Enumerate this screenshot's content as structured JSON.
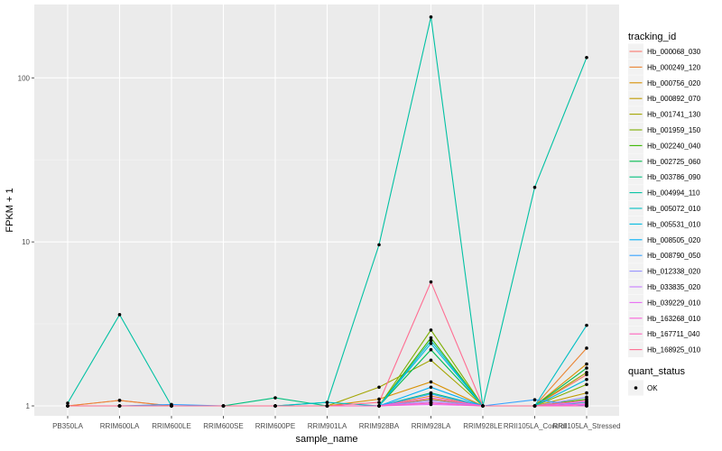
{
  "chart_data": {
    "type": "line",
    "xlabel": "sample_name",
    "ylabel": "FPKM + 1",
    "y_scale": "log10",
    "ylim": [
      0.87,
      280
    ],
    "y_ticks": [
      {
        "value": 1,
        "label": "1"
      },
      {
        "value": 10,
        "label": "10"
      },
      {
        "value": 100,
        "label": "100"
      }
    ],
    "categories": [
      "PB350LA",
      "RRIM600LA",
      "RRIM600LE",
      "RRIM600SE",
      "RRIM600PE",
      "RRIM901LA",
      "RRIM928BA",
      "RRIM928LA",
      "RRIM928LE",
      "RRII105LA_Control",
      "RRII105LA_Stressed"
    ],
    "legend_title": "tracking_id",
    "series": [
      {
        "name": "Hb_000068_030",
        "color": "#F8766D",
        "values": [
          1.0,
          1.08,
          1.0,
          1.0,
          1.0,
          1.0,
          1.0,
          1.05,
          1.0,
          1.0,
          1.55
        ]
      },
      {
        "name": "Hb_000249_120",
        "color": "#EA8331",
        "values": [
          1.0,
          1.08,
          1.0,
          1.0,
          1.0,
          1.0,
          1.0,
          1.15,
          1.0,
          1.0,
          2.25
        ]
      },
      {
        "name": "Hb_000756_020",
        "color": "#D89000",
        "values": [
          1.0,
          1.0,
          1.0,
          1.0,
          1.0,
          1.0,
          1.1,
          1.4,
          1.0,
          1.0,
          1.8
        ]
      },
      {
        "name": "Hb_000892_070",
        "color": "#C09B00",
        "values": [
          1.0,
          1.0,
          1.0,
          1.0,
          1.0,
          1.0,
          1.0,
          1.1,
          1.0,
          1.0,
          1.2
        ]
      },
      {
        "name": "Hb_001741_130",
        "color": "#A3A500",
        "values": [
          1.0,
          1.0,
          1.0,
          1.0,
          1.0,
          1.0,
          1.3,
          1.9,
          1.0,
          1.0,
          1.6
        ]
      },
      {
        "name": "Hb_001959_150",
        "color": "#7CAE00",
        "values": [
          1.0,
          1.0,
          1.0,
          1.0,
          1.0,
          1.0,
          1.0,
          2.9,
          1.0,
          1.0,
          1.35
        ]
      },
      {
        "name": "Hb_002240_040",
        "color": "#39B600",
        "values": [
          1.0,
          1.0,
          1.0,
          1.0,
          1.0,
          1.0,
          1.0,
          2.6,
          1.0,
          1.0,
          1.1
        ]
      },
      {
        "name": "Hb_002725_060",
        "color": "#00BB4E",
        "values": [
          1.0,
          1.0,
          1.0,
          1.0,
          1.0,
          1.0,
          1.0,
          2.2,
          1.0,
          1.0,
          1.7
        ]
      },
      {
        "name": "Hb_003786_090",
        "color": "#00BF7D",
        "values": [
          1.0,
          1.0,
          1.0,
          1.0,
          1.12,
          1.0,
          1.0,
          1.2,
          1.0,
          1.0,
          1.05
        ]
      },
      {
        "name": "Hb_004994_110",
        "color": "#00C1A3",
        "values": [
          1.04,
          3.6,
          1.0,
          1.0,
          1.0,
          1.05,
          9.6,
          235.0,
          1.0,
          21.5,
          133.0
        ]
      },
      {
        "name": "Hb_005072_010",
        "color": "#00BFC4",
        "values": [
          1.0,
          1.0,
          1.0,
          1.0,
          1.0,
          1.05,
          1.0,
          2.5,
          1.0,
          1.0,
          3.1
        ]
      },
      {
        "name": "Hb_005531_010",
        "color": "#00BAE0",
        "values": [
          1.0,
          1.0,
          1.0,
          1.0,
          1.0,
          1.0,
          1.0,
          2.4,
          1.0,
          1.0,
          1.45
        ]
      },
      {
        "name": "Hb_008505_020",
        "color": "#00B0F6",
        "values": [
          1.0,
          1.0,
          1.0,
          1.0,
          1.0,
          1.0,
          1.0,
          1.3,
          1.0,
          1.0,
          1.0
        ]
      },
      {
        "name": "Hb_008790_050",
        "color": "#35A2FF",
        "values": [
          1.0,
          1.0,
          1.02,
          1.0,
          1.0,
          1.0,
          1.0,
          1.18,
          1.0,
          1.09,
          1.0
        ]
      },
      {
        "name": "Hb_012338_020",
        "color": "#9590FF",
        "values": [
          1.0,
          1.0,
          1.0,
          1.0,
          1.0,
          1.0,
          1.0,
          1.08,
          1.0,
          1.0,
          1.13
        ]
      },
      {
        "name": "Hb_033835_020",
        "color": "#C77CFF",
        "values": [
          1.0,
          1.0,
          1.0,
          1.0,
          1.0,
          1.0,
          1.0,
          1.05,
          1.0,
          1.0,
          1.06
        ]
      },
      {
        "name": "Hb_039229_010",
        "color": "#E76BF3",
        "values": [
          1.0,
          1.0,
          1.0,
          1.0,
          1.0,
          1.0,
          1.0,
          1.02,
          1.0,
          1.0,
          1.03
        ]
      },
      {
        "name": "Hb_163268_010",
        "color": "#FA62DB",
        "values": [
          1.0,
          1.0,
          1.0,
          1.0,
          1.0,
          1.0,
          1.0,
          1.12,
          1.0,
          1.0,
          1.02
        ]
      },
      {
        "name": "Hb_167711_040",
        "color": "#FF62BC",
        "values": [
          1.0,
          1.0,
          1.0,
          1.0,
          1.0,
          1.0,
          1.0,
          1.04,
          1.0,
          1.0,
          1.0
        ]
      },
      {
        "name": "Hb_168925_010",
        "color": "#FF6C91",
        "values": [
          1.0,
          1.0,
          1.0,
          1.0,
          1.0,
          1.0,
          1.05,
          5.7,
          1.0,
          1.0,
          1.08
        ]
      }
    ],
    "shape_legend": {
      "title": "quant_status",
      "items": [
        {
          "label": "OK"
        }
      ]
    }
  }
}
